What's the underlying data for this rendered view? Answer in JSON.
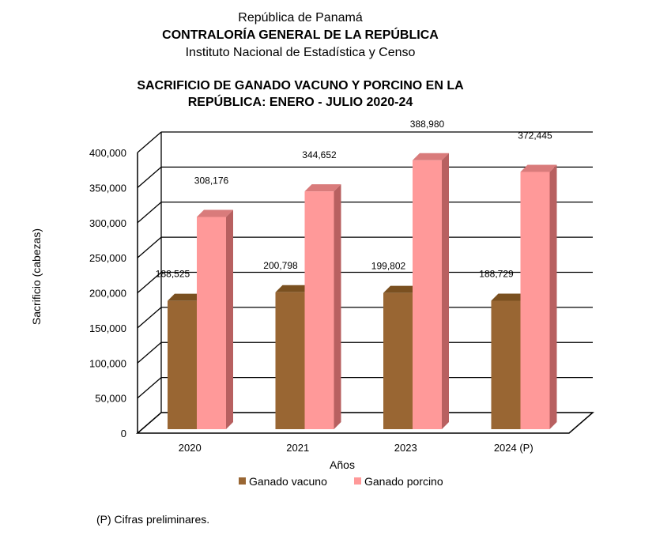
{
  "header": {
    "country": "República de Panamá",
    "org": "CONTRALORÍA GENERAL DE LA REPÚBLICA",
    "institute": "Instituto Nacional de Estadística y Censo",
    "title_line1": "SACRIFICIO DE GANADO VACUNO Y PORCINO EN LA",
    "title_line2": "REPÚBLICA: ENERO - JULIO 2020-24"
  },
  "chart_data": {
    "type": "bar",
    "title": "SACRIFICIO DE GANADO VACUNO Y PORCINO EN LA REPÚBLICA: ENERO - JULIO 2020-24",
    "categories": [
      "2020",
      "2021",
      "2023",
      "2024 (P)"
    ],
    "series": [
      {
        "name": "Ganado vacuno",
        "values": [
          188525,
          200798,
          199802,
          188729
        ],
        "labels": [
          "188,525",
          "200,798",
          "199,802",
          "188,729"
        ],
        "color": "#996633",
        "top_color": "#7a5020",
        "side_color": "#6b4218"
      },
      {
        "name": "Ganado porcino",
        "values": [
          308176,
          344652,
          388980,
          372445
        ],
        "labels": [
          "308,176",
          "344,652",
          "388,980",
          "372,445"
        ],
        "color": "#ff9999",
        "top_color": "#d97b7b",
        "side_color": "#b86060"
      }
    ],
    "xlabel": "Años",
    "ylabel": "Sacrificio (cabezas)",
    "ylim": [
      0,
      400000
    ],
    "yticks": [
      0,
      50000,
      100000,
      150000,
      200000,
      250000,
      300000,
      350000,
      400000
    ],
    "ytick_labels": [
      "0",
      "50,000",
      "100,000",
      "150,000",
      "200,000",
      "250,000",
      "300,000",
      "350,000",
      "400,000"
    ],
    "grid": true,
    "legend_position": "bottom"
  },
  "footnote": "(P) Cifras preliminares."
}
